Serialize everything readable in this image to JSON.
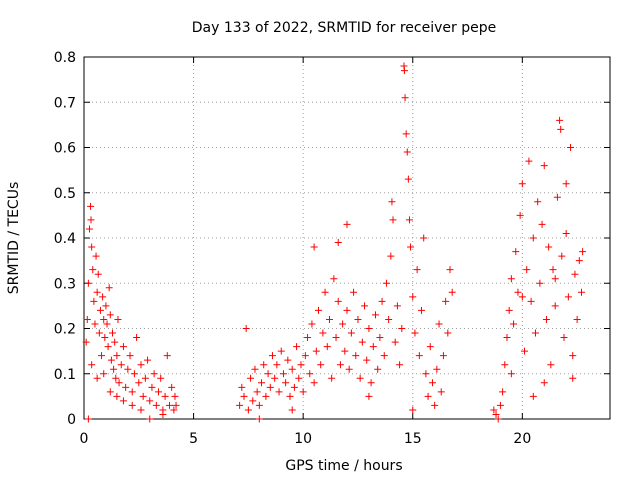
{
  "chart_data": {
    "type": "scatter",
    "title": "Day 133 of 2022, SRMTID for receiver pepe",
    "xlabel": "GPS time / hours",
    "ylabel": "SRMTID / TECUs",
    "xlim": [
      0,
      24
    ],
    "ylim": [
      0,
      0.8
    ],
    "xticks": [
      0,
      5,
      10,
      15,
      20
    ],
    "yticks": [
      0,
      0.1,
      0.2,
      0.3,
      0.4,
      0.5,
      0.6,
      0.7,
      0.8
    ],
    "xtick_labels": [
      "0",
      "5",
      "10",
      "15",
      "20"
    ],
    "ytick_labels": [
      "0",
      "0.1",
      "0.2",
      "0.3",
      "0.4",
      "0.5",
      "0.6",
      "0.7",
      "0.8"
    ],
    "grid": true,
    "marker": "+",
    "color": "#ff0000",
    "series": [
      {
        "points": [
          [
            0.1,
            0.17
          ],
          [
            0.15,
            0.22
          ],
          [
            0.2,
            0.3
          ],
          [
            0.25,
            0.42
          ],
          [
            0.3,
            0.47
          ],
          [
            0.32,
            0.44
          ],
          [
            0.35,
            0.38
          ],
          [
            0.4,
            0.33
          ],
          [
            0.45,
            0.26
          ],
          [
            0.5,
            0.21
          ],
          [
            0.55,
            0.36
          ],
          [
            0.6,
            0.28
          ],
          [
            0.65,
            0.32
          ],
          [
            0.7,
            0.19
          ],
          [
            0.75,
            0.24
          ],
          [
            0.8,
            0.14
          ],
          [
            0.85,
            0.27
          ],
          [
            0.9,
            0.22
          ],
          [
            0.95,
            0.18
          ],
          [
            1.0,
            0.25
          ],
          [
            1.05,
            0.21
          ],
          [
            1.1,
            0.16
          ],
          [
            1.15,
            0.29
          ],
          [
            1.2,
            0.23
          ],
          [
            1.25,
            0.13
          ],
          [
            1.3,
            0.19
          ],
          [
            1.35,
            0.11
          ],
          [
            1.4,
            0.17
          ],
          [
            1.45,
            0.09
          ],
          [
            1.5,
            0.14
          ],
          [
            1.55,
            0.22
          ],
          [
            1.6,
            0.08
          ],
          [
            1.7,
            0.12
          ],
          [
            1.8,
            0.16
          ],
          [
            1.9,
            0.07
          ],
          [
            2.0,
            0.11
          ],
          [
            2.1,
            0.14
          ],
          [
            2.2,
            0.06
          ],
          [
            2.3,
            0.1
          ],
          [
            2.4,
            0.18
          ],
          [
            2.5,
            0.08
          ],
          [
            2.6,
            0.12
          ],
          [
            2.7,
            0.05
          ],
          [
            2.8,
            0.09
          ],
          [
            2.9,
            0.13
          ],
          [
            3.0,
            0.04
          ],
          [
            3.1,
            0.07
          ],
          [
            3.2,
            0.1
          ],
          [
            3.3,
            0.03
          ],
          [
            3.4,
            0.06
          ],
          [
            3.5,
            0.09
          ],
          [
            3.6,
            0.02
          ],
          [
            3.7,
            0.05
          ],
          [
            3.8,
            0.14
          ],
          [
            3.9,
            0.03
          ],
          [
            4.0,
            0.07
          ],
          [
            4.1,
            0.02
          ],
          [
            4.15,
            0.05
          ],
          [
            4.2,
            0.03
          ],
          [
            0.2,
            0.0
          ],
          [
            0.35,
            0.12
          ],
          [
            0.6,
            0.09
          ],
          [
            0.9,
            0.1
          ],
          [
            1.2,
            0.06
          ],
          [
            1.5,
            0.05
          ],
          [
            1.8,
            0.04
          ],
          [
            2.2,
            0.03
          ],
          [
            2.6,
            0.02
          ],
          [
            3.0,
            0.0
          ],
          [
            3.6,
            0.01
          ],
          [
            7.1,
            0.03
          ],
          [
            7.2,
            0.07
          ],
          [
            7.3,
            0.05
          ],
          [
            7.4,
            0.2
          ],
          [
            7.5,
            0.02
          ],
          [
            7.6,
            0.09
          ],
          [
            7.7,
            0.04
          ],
          [
            7.8,
            0.11
          ],
          [
            7.9,
            0.06
          ],
          [
            8.0,
            0.03
          ],
          [
            8.1,
            0.08
          ],
          [
            8.2,
            0.12
          ],
          [
            8.3,
            0.05
          ],
          [
            8.4,
            0.1
          ],
          [
            8.5,
            0.07
          ],
          [
            8.6,
            0.14
          ],
          [
            8.7,
            0.09
          ],
          [
            8.8,
            0.12
          ],
          [
            8.9,
            0.06
          ],
          [
            9.0,
            0.15
          ],
          [
            9.1,
            0.1
          ],
          [
            9.2,
            0.08
          ],
          [
            9.3,
            0.13
          ],
          [
            9.4,
            0.05
          ],
          [
            9.5,
            0.11
          ],
          [
            9.6,
            0.07
          ],
          [
            9.7,
            0.16
          ],
          [
            9.8,
            0.09
          ],
          [
            9.9,
            0.12
          ],
          [
            10.0,
            0.06
          ],
          [
            10.1,
            0.14
          ],
          [
            10.2,
            0.18
          ],
          [
            10.3,
            0.1
          ],
          [
            10.4,
            0.21
          ],
          [
            10.5,
            0.08
          ],
          [
            10.6,
            0.15
          ],
          [
            10.7,
            0.24
          ],
          [
            10.8,
            0.12
          ],
          [
            10.9,
            0.19
          ],
          [
            11.0,
            0.28
          ],
          [
            11.1,
            0.16
          ],
          [
            11.2,
            0.22
          ],
          [
            11.3,
            0.09
          ],
          [
            11.4,
            0.31
          ],
          [
            11.5,
            0.18
          ],
          [
            11.6,
            0.26
          ],
          [
            11.7,
            0.12
          ],
          [
            11.8,
            0.21
          ],
          [
            11.9,
            0.15
          ],
          [
            12.0,
            0.24
          ],
          [
            12.1,
            0.11
          ],
          [
            12.2,
            0.19
          ],
          [
            12.3,
            0.28
          ],
          [
            12.4,
            0.14
          ],
          [
            12.5,
            0.22
          ],
          [
            12.6,
            0.09
          ],
          [
            12.7,
            0.17
          ],
          [
            12.8,
            0.25
          ],
          [
            12.9,
            0.13
          ],
          [
            13.0,
            0.2
          ],
          [
            13.1,
            0.08
          ],
          [
            13.2,
            0.16
          ],
          [
            13.3,
            0.23
          ],
          [
            13.4,
            0.11
          ],
          [
            13.5,
            0.18
          ],
          [
            13.6,
            0.26
          ],
          [
            13.7,
            0.14
          ],
          [
            13.8,
            0.3
          ],
          [
            13.9,
            0.22
          ],
          [
            14.0,
            0.36
          ],
          [
            14.05,
            0.48
          ],
          [
            14.1,
            0.44
          ],
          [
            14.2,
            0.17
          ],
          [
            14.3,
            0.25
          ],
          [
            14.4,
            0.12
          ],
          [
            14.5,
            0.2
          ],
          [
            14.6,
            0.78
          ],
          [
            14.62,
            0.77
          ],
          [
            14.65,
            0.71
          ],
          [
            14.7,
            0.63
          ],
          [
            14.75,
            0.59
          ],
          [
            14.8,
            0.53
          ],
          [
            14.85,
            0.44
          ],
          [
            14.9,
            0.38
          ],
          [
            15.0,
            0.27
          ],
          [
            15.1,
            0.19
          ],
          [
            15.2,
            0.33
          ],
          [
            15.3,
            0.14
          ],
          [
            15.4,
            0.24
          ],
          [
            15.5,
            0.4
          ],
          [
            15.6,
            0.1
          ],
          [
            15.7,
            0.05
          ],
          [
            15.8,
            0.16
          ],
          [
            15.9,
            0.08
          ],
          [
            16.0,
            0.03
          ],
          [
            16.1,
            0.11
          ],
          [
            16.2,
            0.21
          ],
          [
            16.3,
            0.06
          ],
          [
            16.4,
            0.14
          ],
          [
            16.5,
            0.26
          ],
          [
            16.6,
            0.19
          ],
          [
            16.7,
            0.33
          ],
          [
            16.8,
            0.28
          ],
          [
            12.0,
            0.43
          ],
          [
            11.6,
            0.39
          ],
          [
            10.5,
            0.38
          ],
          [
            8.0,
            0.0
          ],
          [
            9.5,
            0.02
          ],
          [
            13.0,
            0.05
          ],
          [
            15.0,
            0.02
          ],
          [
            18.7,
            0.02
          ],
          [
            18.8,
            0.01
          ],
          [
            18.9,
            0.0
          ],
          [
            19.0,
            0.03
          ],
          [
            19.1,
            0.06
          ],
          [
            19.2,
            0.12
          ],
          [
            19.3,
            0.18
          ],
          [
            19.4,
            0.24
          ],
          [
            19.5,
            0.31
          ],
          [
            19.6,
            0.21
          ],
          [
            19.7,
            0.37
          ],
          [
            19.8,
            0.28
          ],
          [
            19.9,
            0.45
          ],
          [
            20.0,
            0.52
          ],
          [
            20.1,
            0.15
          ],
          [
            20.2,
            0.33
          ],
          [
            20.3,
            0.57
          ],
          [
            20.4,
            0.26
          ],
          [
            20.5,
            0.4
          ],
          [
            20.6,
            0.19
          ],
          [
            20.7,
            0.48
          ],
          [
            20.8,
            0.3
          ],
          [
            20.9,
            0.43
          ],
          [
            21.0,
            0.56
          ],
          [
            21.1,
            0.22
          ],
          [
            21.2,
            0.38
          ],
          [
            21.3,
            0.12
          ],
          [
            21.4,
            0.33
          ],
          [
            21.5,
            0.25
          ],
          [
            21.6,
            0.49
          ],
          [
            21.7,
            0.66
          ],
          [
            21.75,
            0.64
          ],
          [
            21.8,
            0.36
          ],
          [
            21.9,
            0.18
          ],
          [
            22.0,
            0.41
          ],
          [
            22.1,
            0.27
          ],
          [
            22.2,
            0.6
          ],
          [
            22.3,
            0.14
          ],
          [
            22.4,
            0.32
          ],
          [
            22.5,
            0.22
          ],
          [
            22.6,
            0.35
          ],
          [
            22.7,
            0.28
          ],
          [
            22.75,
            0.37
          ],
          [
            22.3,
            0.09
          ],
          [
            21.0,
            0.08
          ],
          [
            20.5,
            0.05
          ],
          [
            19.5,
            0.1
          ],
          [
            20.0,
            0.27
          ],
          [
            21.5,
            0.31
          ],
          [
            22.0,
            0.52
          ]
        ]
      }
    ]
  }
}
